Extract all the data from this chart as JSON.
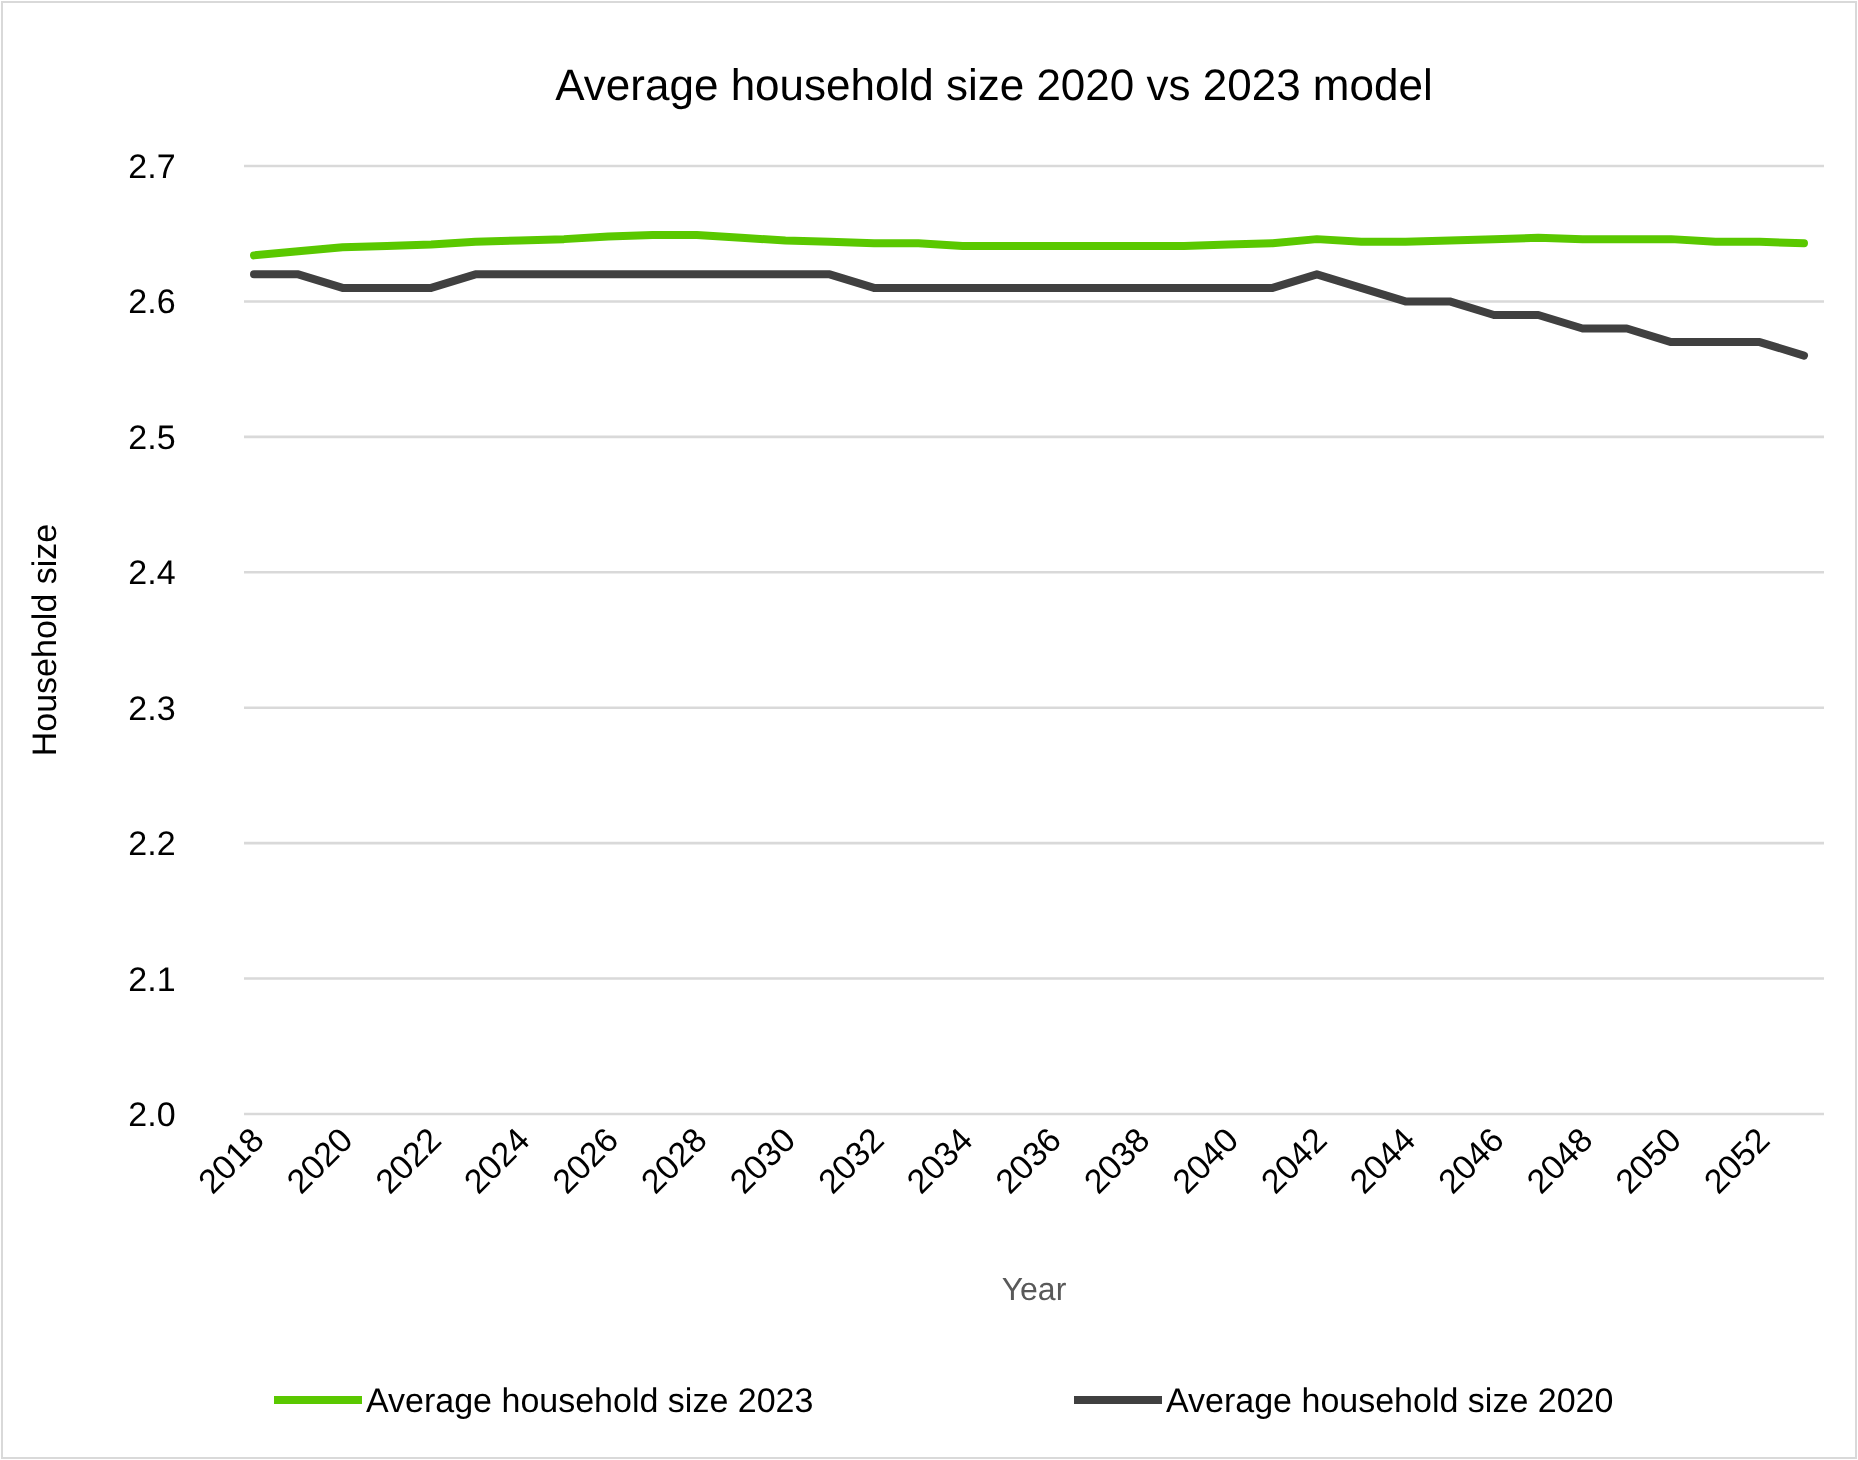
{
  "chart_data": {
    "type": "line",
    "title": "Average household size 2020 vs 2023 model",
    "xlabel": "Year",
    "ylabel": "Household size",
    "categories": [
      "2018",
      null,
      "2020",
      null,
      "2022",
      null,
      "2024",
      null,
      "2026",
      null,
      "2028",
      null,
      "2030",
      null,
      "2032",
      null,
      "2034",
      null,
      "2036",
      null,
      "2038",
      null,
      "2040",
      null,
      "2042",
      null,
      "2044",
      null,
      "2046",
      null,
      "2048",
      null,
      "2050",
      null,
      "2052",
      null
    ],
    "series": [
      {
        "name": "Average household size 2023",
        "color": "#5ac800",
        "values": [
          2.634,
          2.637,
          2.64,
          2.641,
          2.642,
          2.644,
          2.645,
          2.646,
          2.648,
          2.649,
          2.649,
          2.647,
          2.645,
          2.644,
          2.643,
          2.643,
          2.641,
          2.641,
          2.641,
          2.641,
          2.641,
          2.641,
          2.642,
          2.643,
          2.646,
          2.644,
          2.644,
          2.645,
          2.646,
          2.647,
          2.646,
          2.646,
          2.646,
          2.644,
          2.644,
          2.643
        ]
      },
      {
        "name": "Average household size 2020",
        "color": "#404040",
        "values": [
          2.62,
          2.62,
          2.61,
          2.61,
          2.61,
          2.62,
          2.62,
          2.62,
          2.62,
          2.62,
          2.62,
          2.62,
          2.62,
          2.62,
          2.61,
          2.61,
          2.61,
          2.61,
          2.61,
          2.61,
          2.61,
          2.61,
          2.61,
          2.61,
          2.62,
          2.61,
          2.6,
          2.6,
          2.59,
          2.59,
          2.58,
          2.58,
          2.57,
          2.57,
          2.57,
          2.56
        ]
      }
    ],
    "ylim": [
      2.0,
      2.7
    ],
    "yticks": [
      {
        "value": 2.0,
        "label": "2.0"
      },
      2.1,
      2.2,
      2.3,
      2.4,
      2.5,
      2.6,
      2.7
    ],
    "grid": "y",
    "legend": "bottom",
    "marker": "none",
    "line_style": "solid"
  }
}
